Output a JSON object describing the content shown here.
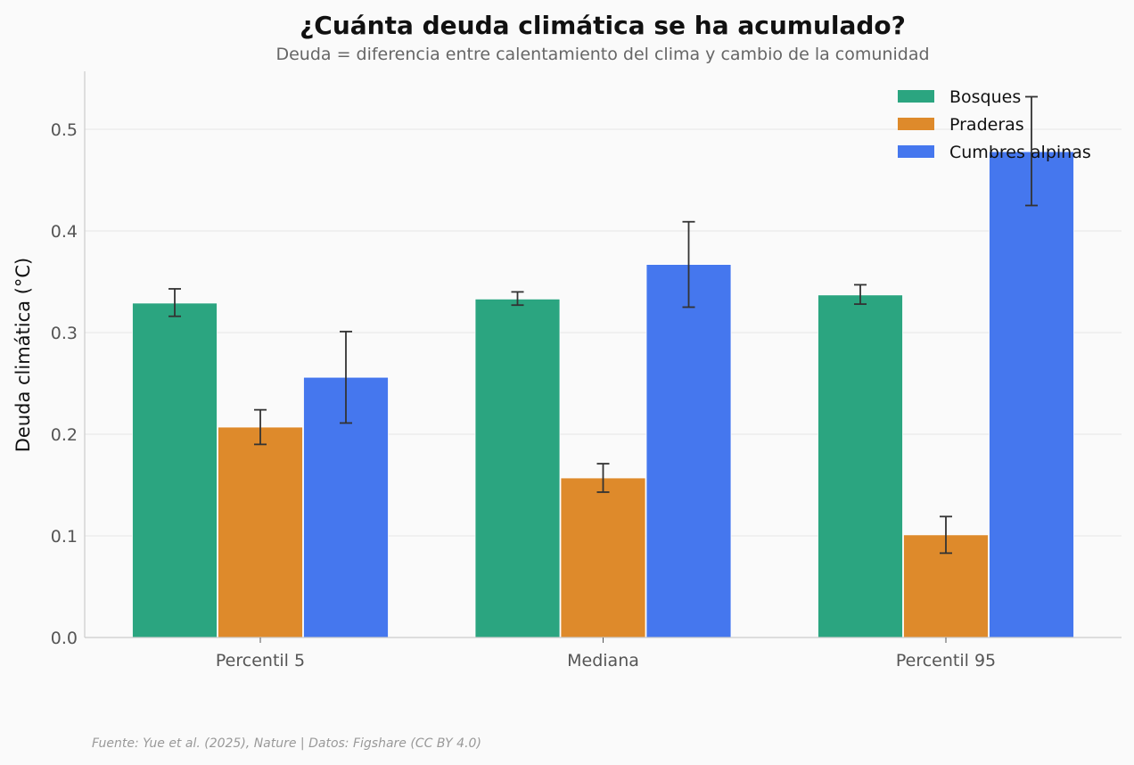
{
  "chart_data": {
    "type": "bar",
    "title": "¿Cuánta deuda climática se ha acumulado?",
    "subtitle": "Deuda = diferencia entre calentamiento del clima y cambio de la comunidad",
    "xlabel": "",
    "ylabel": "Deuda climática (°C)",
    "ylim": [
      0,
      0.557
    ],
    "yticks": [
      0.0,
      0.1,
      0.2,
      0.3,
      0.4,
      0.5
    ],
    "ytick_labels": [
      "0.0",
      "0.1",
      "0.2",
      "0.3",
      "0.4",
      "0.5"
    ],
    "categories": [
      "Percentil 5",
      "Mediana",
      "Percentil 95"
    ],
    "grid": true,
    "legend_position": "top-right",
    "series": [
      {
        "name": "Bosques",
        "color": "#2ba580",
        "values": [
          0.329,
          0.333,
          0.337
        ],
        "err_low": [
          0.316,
          0.327,
          0.328
        ],
        "err_high": [
          0.343,
          0.34,
          0.347
        ]
      },
      {
        "name": "Praderas",
        "color": "#de8a2b",
        "values": [
          0.207,
          0.157,
          0.101
        ],
        "err_low": [
          0.19,
          0.143,
          0.083
        ],
        "err_high": [
          0.224,
          0.171,
          0.119
        ]
      },
      {
        "name": "Cumbres alpinas",
        "color": "#4577ee",
        "values": [
          0.256,
          0.367,
          0.478
        ],
        "err_low": [
          0.211,
          0.325,
          0.425
        ],
        "err_high": [
          0.301,
          0.409,
          0.532
        ]
      }
    ],
    "source": "Fuente: Yue et al. (2025), Nature | Datos: Figshare (CC BY 4.0)"
  }
}
